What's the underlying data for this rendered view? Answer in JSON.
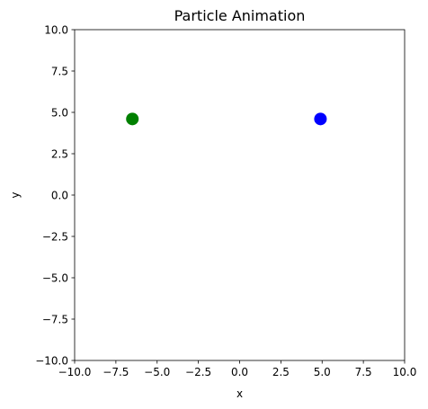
{
  "chart_data": {
    "type": "scatter",
    "title": "Particle Animation",
    "xlabel": "x",
    "ylabel": "y",
    "xlim": [
      -10,
      10
    ],
    "ylim": [
      -10,
      10
    ],
    "xticks": [
      -10,
      -7.5,
      -5,
      -2.5,
      0,
      2.5,
      5,
      7.5,
      10
    ],
    "yticks": [
      -10,
      -7.5,
      -5,
      -2.5,
      0,
      2.5,
      5,
      7.5,
      10
    ],
    "xtick_labels": [
      "−10.0",
      "−7.5",
      "−5.0",
      "−2.5",
      "0.0",
      "2.5",
      "5.0",
      "7.5",
      "10.0"
    ],
    "ytick_labels": [
      "−10.0",
      "−7.5",
      "−5.0",
      "−2.5",
      "0.0",
      "2.5",
      "5.0",
      "7.5",
      "10.0"
    ],
    "grid": false,
    "points": [
      {
        "x": -6.5,
        "y": 4.6,
        "color": "#008000"
      },
      {
        "x": 4.9,
        "y": 4.6,
        "color": "#0000ff"
      }
    ]
  }
}
